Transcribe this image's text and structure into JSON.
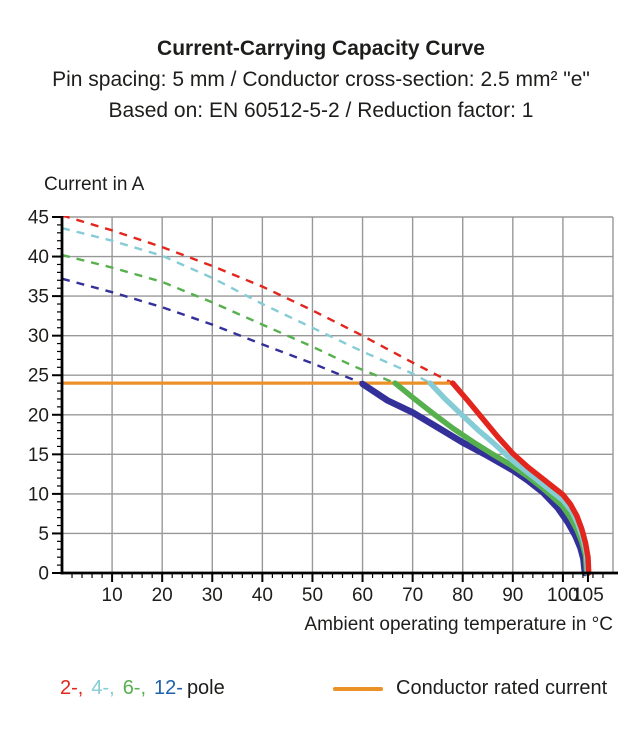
{
  "header": {
    "title": "Current-Carrying Capacity Curve",
    "subtitle1": "Pin spacing: 5 mm / Conductor cross-section: 2.5 mm² \"e\"",
    "subtitle2": "Based on: EN 60512-5-2 / Reduction factor: 1"
  },
  "chart_data": {
    "type": "line",
    "title": "Current-Carrying Capacity Curve",
    "xlabel": "Ambient operating temperature in °C",
    "ylabel": "Current in A",
    "grid": "on",
    "colors": {
      "grid": "#989898",
      "axis": "#000000",
      "rated": "#ec9128"
    },
    "x_axis": {
      "min": 0,
      "max": 110,
      "major_ticks": [
        10,
        20,
        30,
        40,
        50,
        60,
        70,
        80,
        90,
        100,
        105
      ],
      "minor_step": 2,
      "gridlines": [
        10,
        20,
        30,
        40,
        50,
        60,
        70,
        80,
        90,
        100,
        110
      ]
    },
    "y_axis": {
      "min": 0,
      "max": 45,
      "major_ticks": [
        0,
        5,
        10,
        15,
        20,
        25,
        30,
        35,
        40,
        45
      ],
      "minor_step": 1,
      "gridlines": [
        5,
        10,
        15,
        20,
        25,
        30,
        35,
        40,
        45
      ]
    },
    "rated_current": {
      "label": "Conductor rated current",
      "value": 24,
      "x_start": 0,
      "x_end": 78,
      "color": "#ec9128"
    },
    "series": [
      {
        "name": "12-pole",
        "color": "#33309a",
        "line_width": 6.5,
        "dashed_points": [
          [
            0,
            37.2
          ],
          [
            10,
            35.5
          ],
          [
            20,
            33.6
          ],
          [
            30,
            31.4
          ],
          [
            40,
            28.9
          ],
          [
            50,
            26.5
          ],
          [
            55,
            25.2
          ],
          [
            60,
            24
          ]
        ],
        "solid_points": [
          [
            60,
            23.9
          ],
          [
            65,
            21.8
          ],
          [
            70,
            20.3
          ],
          [
            75,
            18.4
          ],
          [
            80,
            16.5
          ],
          [
            85,
            14.8
          ],
          [
            90,
            13
          ],
          [
            93,
            11.7
          ],
          [
            96,
            10.2
          ],
          [
            99,
            8.2
          ],
          [
            101,
            6.4
          ],
          [
            102.5,
            4.7
          ],
          [
            103.5,
            3.2
          ],
          [
            104.1,
            1.8
          ],
          [
            104.4,
            0
          ]
        ]
      },
      {
        "name": "6-pole",
        "color": "#57b04e",
        "line_width": 5.5,
        "dashed_points": [
          [
            0,
            40.2
          ],
          [
            10,
            38.6
          ],
          [
            20,
            36.8
          ],
          [
            30,
            34.2
          ],
          [
            40,
            31.4
          ],
          [
            50,
            28.6
          ],
          [
            58,
            26.2
          ],
          [
            66.5,
            24
          ]
        ],
        "solid_points": [
          [
            66.5,
            24
          ],
          [
            70,
            22.2
          ],
          [
            74,
            20.2
          ],
          [
            78,
            18.3
          ],
          [
            82,
            16.6
          ],
          [
            86,
            15
          ],
          [
            90,
            13.5
          ],
          [
            93,
            12.2
          ],
          [
            96,
            10.7
          ],
          [
            98,
            9.6
          ],
          [
            100,
            8.4
          ],
          [
            101.5,
            7
          ],
          [
            102.8,
            5.5
          ],
          [
            103.8,
            3.9
          ],
          [
            104.5,
            2.2
          ],
          [
            104.75,
            0
          ]
        ]
      },
      {
        "name": "4-pole",
        "color": "#85ccd6",
        "line_width": 5.5,
        "dashed_points": [
          [
            0,
            43.6
          ],
          [
            10,
            42
          ],
          [
            20,
            40.1
          ],
          [
            30,
            37.3
          ],
          [
            40,
            34
          ],
          [
            50,
            31
          ],
          [
            60,
            28
          ],
          [
            70,
            25.2
          ],
          [
            73.5,
            24
          ]
        ],
        "solid_points": [
          [
            73.5,
            24
          ],
          [
            76.5,
            22
          ],
          [
            79.5,
            20.2
          ],
          [
            83,
            18.1
          ],
          [
            86,
            16.5
          ],
          [
            90,
            14.2
          ],
          [
            93,
            12.7
          ],
          [
            96,
            11.2
          ],
          [
            98,
            10.2
          ],
          [
            100,
            9.2
          ],
          [
            101.8,
            7.8
          ],
          [
            103,
            6.2
          ],
          [
            104,
            4.4
          ],
          [
            104.7,
            2.4
          ],
          [
            104.95,
            0
          ]
        ]
      },
      {
        "name": "2-pole",
        "color": "#e2261d",
        "line_width": 5.5,
        "dashed_points": [
          [
            0,
            45.2
          ],
          [
            10,
            43.3
          ],
          [
            20,
            41.2
          ],
          [
            30,
            38.8
          ],
          [
            40,
            36.2
          ],
          [
            50,
            33.2
          ],
          [
            60,
            30
          ],
          [
            70,
            26.6
          ],
          [
            78,
            24
          ]
        ],
        "solid_points": [
          [
            78,
            24
          ],
          [
            81,
            21.8
          ],
          [
            84,
            19.5
          ],
          [
            87,
            17.2
          ],
          [
            90,
            15.1
          ],
          [
            93,
            13.4
          ],
          [
            96,
            11.9
          ],
          [
            98,
            10.9
          ],
          [
            100,
            9.9
          ],
          [
            101.5,
            8.7
          ],
          [
            102.8,
            7.2
          ],
          [
            103.8,
            5.5
          ],
          [
            104.5,
            3.8
          ],
          [
            105,
            2
          ],
          [
            105.15,
            0
          ]
        ]
      }
    ]
  },
  "legend": {
    "poles": [
      {
        "label": "2-,",
        "color": "#e2261d"
      },
      {
        "label": "4-,",
        "color": "#85ccd6"
      },
      {
        "label": "6-,",
        "color": "#57b04e"
      },
      {
        "label": "12-",
        "color": "#1d60ac"
      }
    ],
    "poles_suffix": "pole",
    "rated_label": "Conductor rated current",
    "rated_color": "#ec9128"
  }
}
